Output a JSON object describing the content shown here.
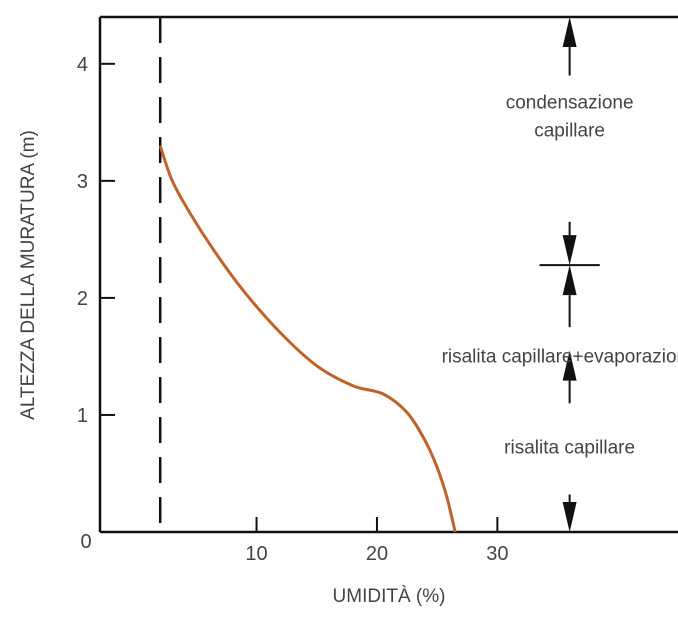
{
  "chart_data": {
    "type": "line",
    "title": "",
    "xlabel": "UMIDITÀ (%)",
    "ylabel": "ALTEZZA DELLA MURATURA (m)",
    "xlim": [
      -3,
      45
    ],
    "ylim": [
      0,
      4.4
    ],
    "x_ticks": [
      10,
      20,
      30
    ],
    "y_ticks": [
      1,
      2,
      3,
      4
    ],
    "origin_label": "0",
    "grid": false,
    "legend": "none",
    "series": [
      {
        "color": "#c0622a",
        "x": [
          2.0,
          3.0,
          4.5,
          6.5,
          9.0,
          12.0,
          15.0,
          18.0,
          20.5,
          22.5,
          24.0,
          25.0,
          25.8,
          26.5
        ],
        "y": [
          3.3,
          3.0,
          2.72,
          2.4,
          2.05,
          1.7,
          1.42,
          1.25,
          1.18,
          1.02,
          0.78,
          0.55,
          0.3,
          0.0
        ]
      }
    ],
    "reference_line": {
      "x": 2.0,
      "style": "dashed"
    },
    "zone_marker": {
      "x": 36,
      "y": 2.28,
      "x_from": 33.5,
      "x_to": 38.5
    },
    "annotations": [
      {
        "text_lines": [
          "condensazione",
          "capillare"
        ],
        "x": 36,
        "y": 3.55
      },
      {
        "text_lines": [
          "risalita capillare+evaporazione"
        ],
        "x": 36,
        "y": 1.5
      },
      {
        "text_lines": [
          "risalita capillare"
        ],
        "x": 36,
        "y": 0.72
      }
    ],
    "arrows": [
      {
        "x": 36,
        "from": 3.9,
        "to": 4.5
      },
      {
        "x": 36,
        "from": 2.65,
        "to": 2.28
      },
      {
        "x": 36,
        "from": 1.75,
        "to": 2.28
      },
      {
        "x": 36,
        "from": 1.1,
        "to": 1.55
      },
      {
        "x": 36,
        "from": 0.32,
        "to": 0.0
      }
    ]
  }
}
